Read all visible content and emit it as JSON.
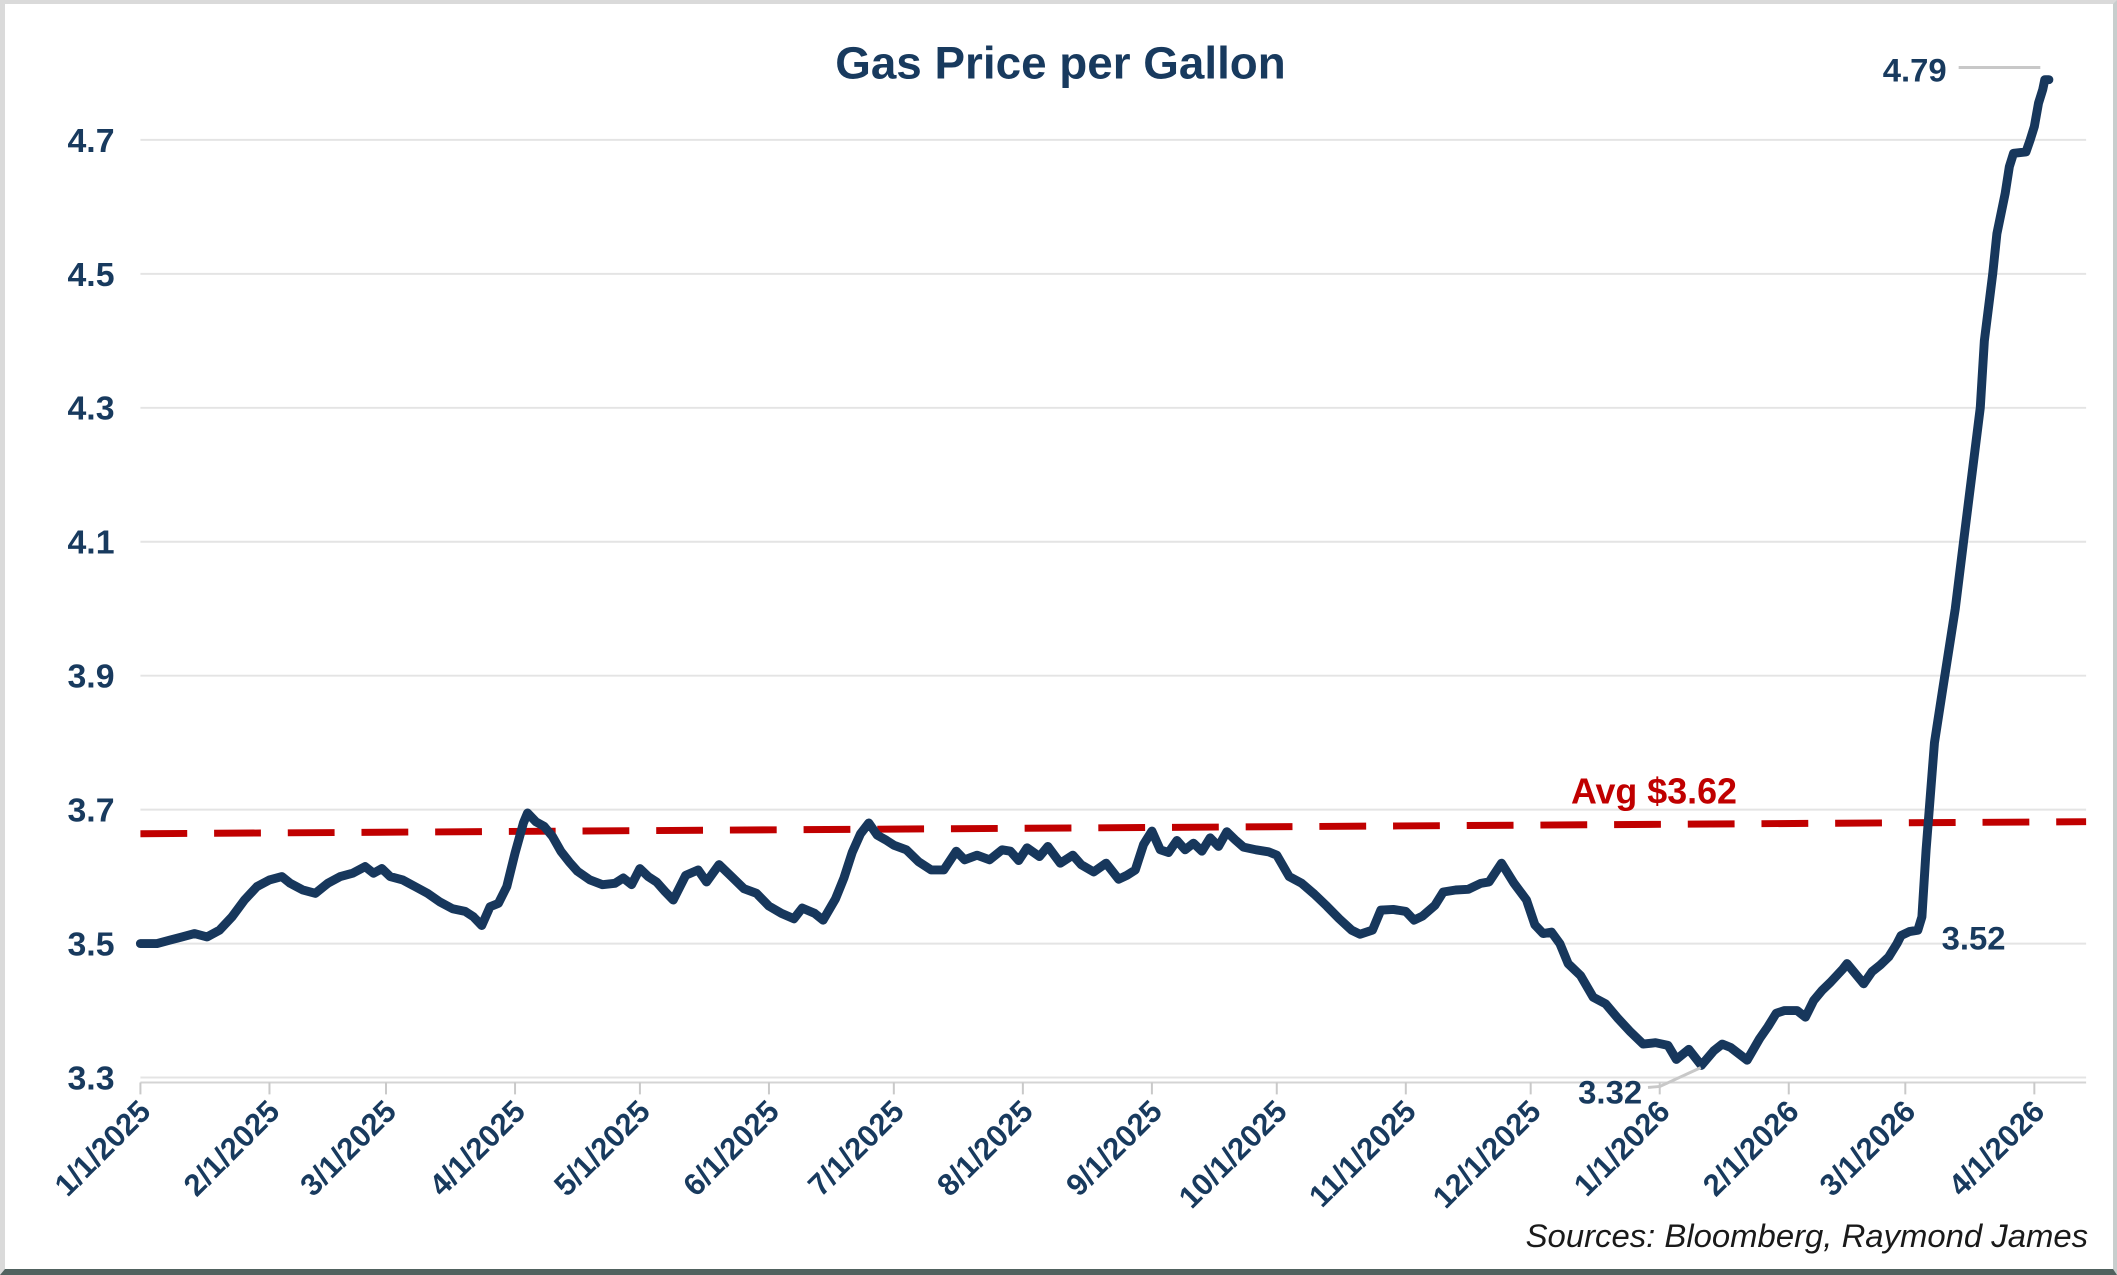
{
  "title": "Gas Price per Gallon",
  "source_note": "Sources: Bloomberg, Raymond James",
  "annotations": {
    "peak": "4.79",
    "pre_spike": "3.52",
    "low": "3.32"
  },
  "avg_line": {
    "label": "Avg $3.62",
    "value": 3.62,
    "draw_start_value": 3.664,
    "draw_end_value": 3.682
  },
  "colors": {
    "line": "#17375c",
    "text": "#183a5e",
    "avg": "#c00000",
    "grid": "#e4e4e4",
    "axis": "#d4d4d4",
    "tick": "#c9c9c9",
    "leader": "#c8c8c8"
  },
  "chart_data": {
    "type": "line",
    "title": "Gas Price per Gallon",
    "xlabel": "",
    "ylabel": "",
    "ylim": [
      3.3,
      4.7
    ],
    "y_ticks": [
      3.3,
      3.5,
      3.7,
      3.9,
      4.1,
      4.3,
      4.5,
      4.7
    ],
    "x_tick_labels": [
      "1/1/2025",
      "2/1/2025",
      "3/1/2025",
      "4/1/2025",
      "5/1/2025",
      "6/1/2025",
      "7/1/2025",
      "8/1/2025",
      "9/1/2025",
      "10/1/2025",
      "11/1/2025",
      "12/1/2025",
      "1/1/2026",
      "2/1/2026",
      "3/1/2026",
      "4/1/2026"
    ],
    "x_tick_day_offsets": [
      0,
      31,
      59,
      90,
      120,
      151,
      181,
      212,
      243,
      273,
      304,
      334,
      365,
      396,
      424,
      455
    ],
    "x_unit": "days since 1/1/2025",
    "grid": "horizontal only",
    "legend": "none",
    "average": 3.62,
    "callouts": [
      {
        "label": "4.79",
        "day": 457,
        "value": 4.79
      },
      {
        "label": "3.52",
        "day": 424,
        "value": 3.52
      },
      {
        "label": "3.32",
        "day": 375,
        "value": 3.32
      }
    ],
    "series": [
      {
        "name": "Gas Price per Gallon",
        "points": [
          [
            0,
            3.5
          ],
          [
            4,
            3.5
          ],
          [
            7,
            3.505
          ],
          [
            10,
            3.51
          ],
          [
            13,
            3.515
          ],
          [
            16,
            3.51
          ],
          [
            19,
            3.52
          ],
          [
            22,
            3.54
          ],
          [
            25,
            3.565
          ],
          [
            28,
            3.585
          ],
          [
            31,
            3.595
          ],
          [
            34,
            3.6
          ],
          [
            36,
            3.59
          ],
          [
            39,
            3.58
          ],
          [
            42,
            3.575
          ],
          [
            45,
            3.59
          ],
          [
            48,
            3.6
          ],
          [
            51,
            3.605
          ],
          [
            54,
            3.615
          ],
          [
            56,
            3.605
          ],
          [
            58,
            3.612
          ],
          [
            60,
            3.6
          ],
          [
            63,
            3.595
          ],
          [
            66,
            3.585
          ],
          [
            69,
            3.575
          ],
          [
            72,
            3.562
          ],
          [
            75,
            3.552
          ],
          [
            78,
            3.548
          ],
          [
            80,
            3.54
          ],
          [
            82,
            3.527
          ],
          [
            84,
            3.555
          ],
          [
            86,
            3.56
          ],
          [
            88,
            3.585
          ],
          [
            90,
            3.635
          ],
          [
            92,
            3.68
          ],
          [
            93,
            3.695
          ],
          [
            95,
            3.682
          ],
          [
            97,
            3.675
          ],
          [
            99,
            3.66
          ],
          [
            101,
            3.638
          ],
          [
            103,
            3.622
          ],
          [
            105,
            3.608
          ],
          [
            108,
            3.595
          ],
          [
            111,
            3.588
          ],
          [
            114,
            3.59
          ],
          [
            116,
            3.598
          ],
          [
            118,
            3.588
          ],
          [
            120,
            3.612
          ],
          [
            122,
            3.6
          ],
          [
            124,
            3.592
          ],
          [
            126,
            3.578
          ],
          [
            128,
            3.565
          ],
          [
            131,
            3.602
          ],
          [
            134,
            3.61
          ],
          [
            136,
            3.592
          ],
          [
            139,
            3.618
          ],
          [
            142,
            3.6
          ],
          [
            145,
            3.582
          ],
          [
            148,
            3.575
          ],
          [
            151,
            3.556
          ],
          [
            154,
            3.545
          ],
          [
            157,
            3.537
          ],
          [
            159,
            3.553
          ],
          [
            162,
            3.545
          ],
          [
            164,
            3.535
          ],
          [
            167,
            3.567
          ],
          [
            169,
            3.598
          ],
          [
            171,
            3.636
          ],
          [
            173,
            3.664
          ],
          [
            175,
            3.68
          ],
          [
            177,
            3.662
          ],
          [
            179,
            3.655
          ],
          [
            181,
            3.647
          ],
          [
            184,
            3.64
          ],
          [
            187,
            3.622
          ],
          [
            190,
            3.61
          ],
          [
            193,
            3.61
          ],
          [
            196,
            3.638
          ],
          [
            198,
            3.625
          ],
          [
            201,
            3.632
          ],
          [
            204,
            3.625
          ],
          [
            207,
            3.64
          ],
          [
            209,
            3.638
          ],
          [
            211,
            3.624
          ],
          [
            213,
            3.643
          ],
          [
            216,
            3.63
          ],
          [
            218,
            3.645
          ],
          [
            221,
            3.62
          ],
          [
            224,
            3.632
          ],
          [
            226,
            3.618
          ],
          [
            229,
            3.607
          ],
          [
            232,
            3.62
          ],
          [
            235,
            3.596
          ],
          [
            237,
            3.602
          ],
          [
            239,
            3.61
          ],
          [
            241,
            3.648
          ],
          [
            243,
            3.668
          ],
          [
            245,
            3.64
          ],
          [
            247,
            3.636
          ],
          [
            249,
            3.654
          ],
          [
            251,
            3.64
          ],
          [
            253,
            3.65
          ],
          [
            255,
            3.638
          ],
          [
            257,
            3.658
          ],
          [
            259,
            3.645
          ],
          [
            261,
            3.667
          ],
          [
            263,
            3.655
          ],
          [
            265,
            3.644
          ],
          [
            268,
            3.64
          ],
          [
            271,
            3.637
          ],
          [
            273,
            3.632
          ],
          [
            276,
            3.6
          ],
          [
            279,
            3.59
          ],
          [
            282,
            3.574
          ],
          [
            285,
            3.556
          ],
          [
            288,
            3.537
          ],
          [
            291,
            3.52
          ],
          [
            293,
            3.514
          ],
          [
            296,
            3.52
          ],
          [
            298,
            3.55
          ],
          [
            301,
            3.551
          ],
          [
            304,
            3.548
          ],
          [
            306,
            3.535
          ],
          [
            308,
            3.541
          ],
          [
            311,
            3.557
          ],
          [
            313,
            3.577
          ],
          [
            316,
            3.58
          ],
          [
            319,
            3.581
          ],
          [
            322,
            3.59
          ],
          [
            324,
            3.592
          ],
          [
            327,
            3.62
          ],
          [
            330,
            3.59
          ],
          [
            333,
            3.565
          ],
          [
            335,
            3.528
          ],
          [
            337,
            3.515
          ],
          [
            339,
            3.517
          ],
          [
            341,
            3.5
          ],
          [
            343,
            3.47
          ],
          [
            346,
            3.452
          ],
          [
            349,
            3.42
          ],
          [
            352,
            3.41
          ],
          [
            355,
            3.388
          ],
          [
            358,
            3.368
          ],
          [
            361,
            3.35
          ],
          [
            364,
            3.352
          ],
          [
            367,
            3.348
          ],
          [
            369,
            3.327
          ],
          [
            372,
            3.342
          ],
          [
            375,
            3.318
          ],
          [
            378,
            3.34
          ],
          [
            380,
            3.35
          ],
          [
            382,
            3.345
          ],
          [
            386,
            3.326
          ],
          [
            389,
            3.358
          ],
          [
            391,
            3.376
          ],
          [
            393,
            3.396
          ],
          [
            395,
            3.4
          ],
          [
            398,
            3.4
          ],
          [
            400,
            3.39
          ],
          [
            402,
            3.415
          ],
          [
            404,
            3.43
          ],
          [
            406,
            3.442
          ],
          [
            409,
            3.462
          ],
          [
            410,
            3.47
          ],
          [
            412,
            3.455
          ],
          [
            414,
            3.44
          ],
          [
            416,
            3.458
          ],
          [
            418,
            3.468
          ],
          [
            420,
            3.48
          ],
          [
            422,
            3.5
          ],
          [
            423,
            3.512
          ],
          [
            425,
            3.518
          ],
          [
            427,
            3.52
          ],
          [
            428,
            3.54
          ],
          [
            429,
            3.64
          ],
          [
            430,
            3.72
          ],
          [
            431,
            3.8
          ],
          [
            433,
            3.88
          ],
          [
            434,
            3.92
          ],
          [
            436,
            4.0
          ],
          [
            438,
            4.1
          ],
          [
            440,
            4.2
          ],
          [
            442,
            4.3
          ],
          [
            443,
            4.4
          ],
          [
            445,
            4.5
          ],
          [
            446,
            4.56
          ],
          [
            448,
            4.62
          ],
          [
            449,
            4.66
          ],
          [
            450,
            4.68
          ],
          [
            453,
            4.682
          ],
          [
            454,
            4.7
          ],
          [
            455,
            4.72
          ],
          [
            456,
            4.755
          ],
          [
            457,
            4.775
          ],
          [
            457.5,
            4.79
          ],
          [
            458.5,
            4.79
          ]
        ]
      }
    ]
  }
}
